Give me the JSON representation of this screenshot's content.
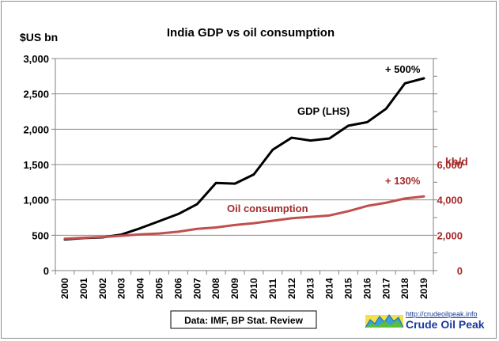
{
  "chart_data": {
    "type": "line",
    "title": "India GDP vs oil consumption",
    "ylabel_left": "$US bn",
    "ylabel_right": "kb/d",
    "x": [
      "2000",
      "2001",
      "2002",
      "2003",
      "2004",
      "2005",
      "2006",
      "2007",
      "2008",
      "2009",
      "2010",
      "2011",
      "2012",
      "2013",
      "2014",
      "2015",
      "2016",
      "2017",
      "2018",
      "2019"
    ],
    "y_left_ticks": [
      "0",
      "500",
      "1,000",
      "1,500",
      "2,000",
      "2,500",
      "3,000"
    ],
    "y_right_ticks": [
      "0",
      "2,000",
      "4,000",
      "6,000"
    ],
    "ylim_left": [
      0,
      3000
    ],
    "ylim_right": [
      0,
      12000
    ],
    "grid": true,
    "series": [
      {
        "name": "GDP (LHS)",
        "axis": "left",
        "color": "#000000",
        "values": [
          440,
          460,
          470,
          510,
          600,
          700,
          800,
          940,
          1240,
          1230,
          1360,
          1710,
          1880,
          1840,
          1870,
          2050,
          2100,
          2290,
          2650,
          2720
        ]
      },
      {
        "name": "Oil consumption",
        "axis": "right",
        "color": "#c0504d",
        "values": [
          1800,
          1860,
          1900,
          1970,
          2050,
          2100,
          2200,
          2360,
          2440,
          2580,
          2680,
          2820,
          2960,
          3040,
          3120,
          3360,
          3660,
          3840,
          4080,
          4200
        ]
      }
    ],
    "annotations": [
      "+ 500%",
      "+ 130%"
    ],
    "source": "Data: IMF, BP Stat. Review",
    "logo_url": "http://crudeoilpeak.info",
    "logo_name": "Crude Oil Peak"
  }
}
